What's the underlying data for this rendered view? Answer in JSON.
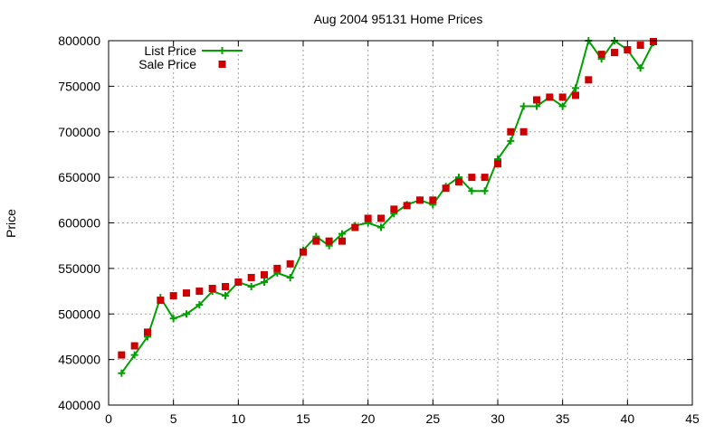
{
  "chart_data": {
    "type": "line",
    "title": "Aug 2004 95131 Home Prices",
    "xlabel": "",
    "ylabel": "Price",
    "xlim": [
      0,
      45
    ],
    "ylim": [
      400000,
      800000
    ],
    "x_ticks": [
      0,
      5,
      10,
      15,
      20,
      25,
      30,
      35,
      40,
      45
    ],
    "y_ticks": [
      400000,
      450000,
      500000,
      550000,
      600000,
      650000,
      700000,
      750000,
      800000
    ],
    "grid": true,
    "legend_position": "top-left",
    "series": [
      {
        "name": "List Price",
        "style": "line with plus markers",
        "color": "#00a000",
        "x": [
          1,
          2,
          3,
          4,
          5,
          6,
          7,
          8,
          9,
          10,
          11,
          12,
          13,
          14,
          15,
          16,
          17,
          18,
          19,
          20,
          21,
          22,
          23,
          24,
          25,
          26,
          27,
          28,
          29,
          30,
          31,
          32,
          33,
          34,
          35,
          36,
          37,
          38,
          39,
          40,
          41,
          42
        ],
        "values": [
          435000,
          455000,
          475000,
          518000,
          495000,
          500000,
          510000,
          525000,
          520000,
          535000,
          530000,
          535000,
          545000,
          540000,
          570000,
          585000,
          575000,
          588000,
          597000,
          600000,
          595000,
          610000,
          620000,
          625000,
          620000,
          640000,
          650000,
          635000,
          635000,
          670000,
          690000,
          728000,
          728000,
          738000,
          728000,
          748000,
          800000,
          780000,
          800000,
          790000,
          770000,
          798000
        ]
      },
      {
        "name": "Sale Price",
        "style": "square markers",
        "color": "#cc0000",
        "x": [
          1,
          2,
          3,
          4,
          5,
          6,
          7,
          8,
          9,
          10,
          11,
          12,
          13,
          14,
          15,
          16,
          17,
          18,
          19,
          20,
          21,
          22,
          23,
          24,
          25,
          26,
          27,
          28,
          29,
          30,
          31,
          32,
          33,
          34,
          35,
          36,
          37,
          38,
          39,
          40,
          41,
          42
        ],
        "values": [
          455000,
          465000,
          480000,
          515000,
          520000,
          523000,
          525000,
          528000,
          530000,
          535000,
          540000,
          543000,
          550000,
          555000,
          568000,
          580000,
          580000,
          580000,
          595000,
          605000,
          605000,
          615000,
          619000,
          625000,
          625000,
          638000,
          645000,
          650000,
          650000,
          665000,
          700000,
          700000,
          735000,
          738000,
          738000,
          740000,
          757000,
          785000,
          787000,
          790000,
          795000,
          799000
        ]
      }
    ]
  }
}
